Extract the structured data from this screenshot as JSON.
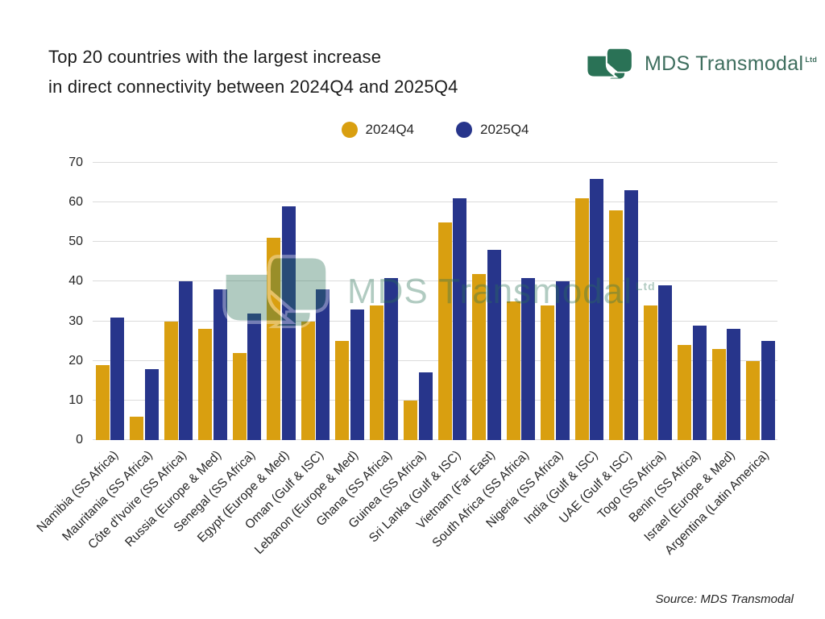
{
  "title": {
    "line1": "Top 20 countries with the largest increase",
    "line2": "in direct connectivity between 2024Q4 and 2025Q4"
  },
  "logo": {
    "text": "MDS Transmodal",
    "suffix": "Ltd"
  },
  "source": "Source: MDS Transmodal",
  "colors": {
    "series_2024Q4": "#d99f10",
    "series_2025Q4": "#27358b",
    "logo_green": "#2a7256",
    "logo_text_green": "#3e6e5e",
    "gridline": "#dbdbdb",
    "text": "#262626"
  },
  "chart_data": {
    "type": "bar",
    "title": "Top 20 countries with the largest increase in direct connectivity between 2024Q4 and 2025Q4",
    "categories": [
      "Namibia (SS Africa)",
      "Mauritania (SS Africa)",
      "Côte d'Ivoire (SS Africa)",
      "Russia (Europe & Med)",
      "Senegal (SS Africa)",
      "Egypt (Europe & Med)",
      "Oman (Gulf & ISC)",
      "Lebanon (Europe & Med)",
      "Ghana (SS Africa)",
      "Guinea (SS Africa)",
      "Sri Lanka (Gulf & ISC)",
      "Vietnam (Far East)",
      "South Africa (SS Africa)",
      "Nigeria (SS Africa)",
      "India (Gulf & ISC)",
      "UAE (Gulf & ISC)",
      "Togo (SS Africa)",
      "Benin (SS Africa)",
      "Israel (Europe & Med)",
      "Argentina (Latin America)"
    ],
    "series": [
      {
        "name": "2024Q4",
        "color": "#d99f10",
        "values": [
          19,
          6,
          30,
          28,
          22,
          51,
          30,
          25,
          34,
          10,
          55,
          42,
          35,
          34,
          61,
          58,
          34,
          24,
          23,
          20
        ]
      },
      {
        "name": "2025Q4",
        "color": "#27358b",
        "values": [
          31,
          18,
          40,
          38,
          32,
          59,
          38,
          33,
          41,
          17,
          61,
          48,
          41,
          40,
          66,
          63,
          39,
          29,
          28,
          25
        ]
      }
    ],
    "xlabel": "",
    "ylabel": "",
    "ylim": [
      0,
      70
    ],
    "yticks": [
      0,
      10,
      20,
      30,
      40,
      50,
      60,
      70
    ],
    "grid": true,
    "legend_position": "top-center",
    "xtick_rotation": 45
  }
}
